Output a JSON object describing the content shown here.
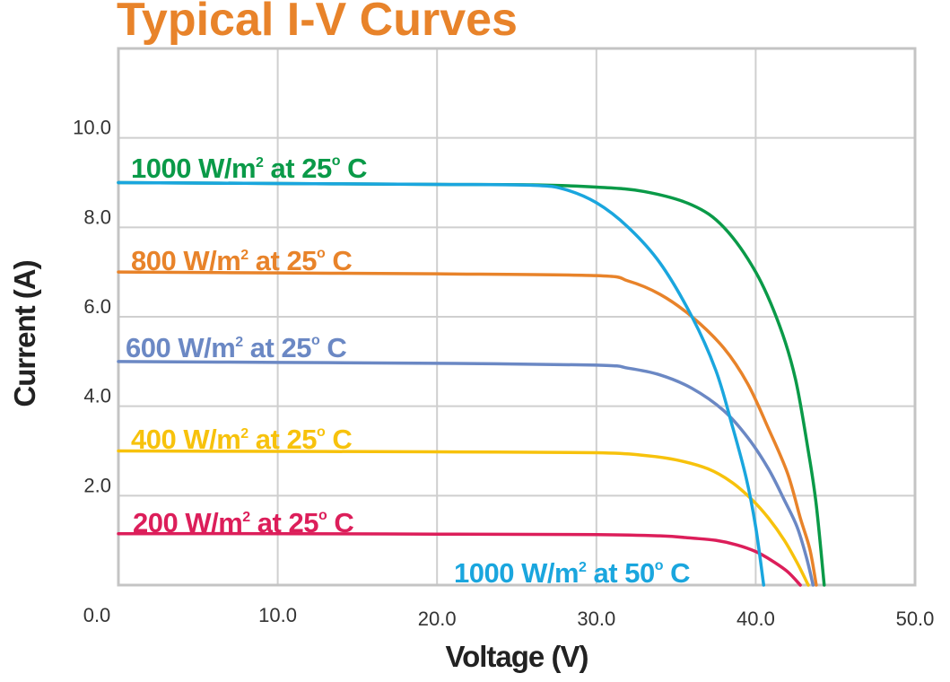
{
  "chart_data": {
    "type": "line",
    "title": "Typical I-V Curves",
    "xlabel": "Voltage (V)",
    "ylabel": "Current (A)",
    "xlim": [
      0,
      50
    ],
    "ylim": [
      0,
      12
    ],
    "grid": true,
    "x_ticks": [
      "0.0",
      "10.0",
      "20.0",
      "30.0",
      "40.0",
      "50.0"
    ],
    "y_ticks": [
      "2.0",
      "4.0",
      "6.0",
      "8.0",
      "10.0"
    ],
    "series": [
      {
        "name": "1000 W/m² at 25° C",
        "color": "#0a9a48",
        "label_parts": {
          "pre": "1000 W/m",
          "sup": "2",
          "mid": " at 25",
          "deg": "o",
          "post": " C"
        },
        "points": [
          [
            0,
            9.0
          ],
          [
            10,
            8.98
          ],
          [
            20,
            8.96
          ],
          [
            26,
            8.95
          ],
          [
            30,
            8.9
          ],
          [
            33,
            8.8
          ],
          [
            36,
            8.5
          ],
          [
            38,
            8.0
          ],
          [
            40,
            7.0
          ],
          [
            41.5,
            5.8
          ],
          [
            42.5,
            4.6
          ],
          [
            43.3,
            3.0
          ],
          [
            43.8,
            1.8
          ],
          [
            44.3,
            0
          ]
        ]
      },
      {
        "name": "800 W/m² at 25° C",
        "color": "#e8832a",
        "label_parts": {
          "pre": "800 W/m",
          "sup": "2",
          "mid": " at 25",
          "deg": "o",
          "post": " C"
        },
        "points": [
          [
            0,
            7.0
          ],
          [
            10,
            6.98
          ],
          [
            20,
            6.96
          ],
          [
            30,
            6.92
          ],
          [
            32,
            6.8
          ],
          [
            34,
            6.5
          ],
          [
            36,
            6.0
          ],
          [
            38,
            5.3
          ],
          [
            39.5,
            4.5
          ],
          [
            40.8,
            3.5
          ],
          [
            42,
            2.5
          ],
          [
            42.8,
            1.5
          ],
          [
            43.4,
            0.8
          ],
          [
            43.8,
            0
          ]
        ]
      },
      {
        "name": "600 W/m² at 25° C",
        "color": "#6b88c4",
        "label_parts": {
          "pre": "600 W/m",
          "sup": "2",
          "mid": " at 25",
          "deg": "o",
          "post": " C"
        },
        "points": [
          [
            0,
            5.0
          ],
          [
            10,
            4.98
          ],
          [
            20,
            4.96
          ],
          [
            30,
            4.92
          ],
          [
            32,
            4.85
          ],
          [
            34,
            4.7
          ],
          [
            36,
            4.4
          ],
          [
            38,
            3.9
          ],
          [
            39.5,
            3.3
          ],
          [
            40.8,
            2.6
          ],
          [
            41.8,
            1.9
          ],
          [
            42.6,
            1.3
          ],
          [
            43.2,
            0.6
          ],
          [
            43.6,
            0
          ]
        ]
      },
      {
        "name": "400 W/m² at 25° C",
        "color": "#f7c20c",
        "label_parts": {
          "pre": "400 W/m",
          "sup": "2",
          "mid": " at 25",
          "deg": "o",
          "post": " C"
        },
        "points": [
          [
            0,
            3.0
          ],
          [
            10,
            2.99
          ],
          [
            20,
            2.98
          ],
          [
            30,
            2.96
          ],
          [
            33,
            2.9
          ],
          [
            35,
            2.8
          ],
          [
            37,
            2.6
          ],
          [
            38.5,
            2.3
          ],
          [
            39.8,
            1.9
          ],
          [
            40.8,
            1.5
          ],
          [
            41.8,
            1.0
          ],
          [
            42.6,
            0.5
          ],
          [
            43.3,
            0
          ]
        ]
      },
      {
        "name": "200 W/m² at 25° C",
        "color": "#dc1e5a",
        "label_parts": {
          "pre": "200 W/m",
          "sup": "2",
          "mid": " at 25",
          "deg": "o",
          "post": " C"
        },
        "points": [
          [
            0,
            1.15
          ],
          [
            10,
            1.15
          ],
          [
            20,
            1.14
          ],
          [
            30,
            1.13
          ],
          [
            34,
            1.1
          ],
          [
            36,
            1.05
          ],
          [
            37.5,
            1.0
          ],
          [
            38.8,
            0.9
          ],
          [
            40,
            0.75
          ],
          [
            41,
            0.55
          ],
          [
            42,
            0.3
          ],
          [
            42.8,
            0
          ]
        ]
      },
      {
        "name": "1000 W/m² at 50° C",
        "color": "#1aa6de",
        "label_parts": {
          "pre": "1000 W/m",
          "sup": "2",
          "mid": " at 50",
          "deg": "o",
          "post": " C"
        },
        "points": [
          [
            0,
            9.0
          ],
          [
            10,
            8.98
          ],
          [
            20,
            8.96
          ],
          [
            26,
            8.94
          ],
          [
            28,
            8.85
          ],
          [
            30,
            8.55
          ],
          [
            32,
            8.0
          ],
          [
            34,
            7.2
          ],
          [
            36,
            6.0
          ],
          [
            37.5,
            4.8
          ],
          [
            38.5,
            3.6
          ],
          [
            39.4,
            2.4
          ],
          [
            40,
            1.3
          ],
          [
            40.5,
            0
          ]
        ]
      }
    ]
  }
}
